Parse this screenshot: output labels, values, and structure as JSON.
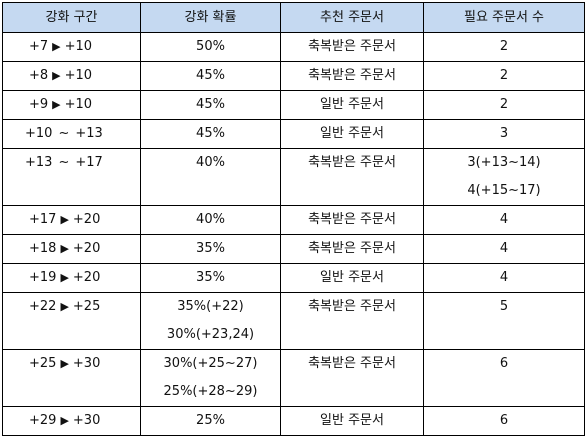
{
  "table": {
    "headers": [
      "강화 구간",
      "강화 확률",
      "추천 주문서",
      "필요 주문서 수"
    ],
    "rows": [
      {
        "from": "+7",
        "sep": "▶",
        "to": "+10",
        "rate": [
          "50%"
        ],
        "scroll": "축복받은 주문서",
        "count": [
          "2"
        ]
      },
      {
        "from": "+8",
        "sep": "▶",
        "to": "+10",
        "rate": [
          "45%"
        ],
        "scroll": "축복받은 주문서",
        "count": [
          "2"
        ]
      },
      {
        "from": "+9",
        "sep": "▶",
        "to": "+10",
        "rate": [
          "45%"
        ],
        "scroll": "일반 주문서",
        "count": [
          "2"
        ]
      },
      {
        "from": "+10",
        "sep": "~",
        "to": "+13",
        "rate": [
          "45%"
        ],
        "scroll": "일반 주문서",
        "count": [
          "3"
        ]
      },
      {
        "from": "+13",
        "sep": "~",
        "to": "+17",
        "rate": [
          "40%"
        ],
        "scroll": "축복받은 주문서",
        "count": [
          "3(+13~14)",
          "4(+15~17)"
        ]
      },
      {
        "from": "+17",
        "sep": "▶",
        "to": "+20",
        "rate": [
          "40%"
        ],
        "scroll": "축복받은 주문서",
        "count": [
          "4"
        ]
      },
      {
        "from": "+18",
        "sep": "▶",
        "to": "+20",
        "rate": [
          "35%"
        ],
        "scroll": "축복받은 주문서",
        "count": [
          "4"
        ]
      },
      {
        "from": "+19",
        "sep": "▶",
        "to": "+20",
        "rate": [
          "35%"
        ],
        "scroll": "일반 주문서",
        "count": [
          "4"
        ]
      },
      {
        "from": "+22",
        "sep": "▶",
        "to": "+25",
        "rate": [
          "35%(+22)",
          "30%(+23,24)"
        ],
        "scroll": "축복받은 주문서",
        "count": [
          "5"
        ]
      },
      {
        "from": "+25",
        "sep": "▶",
        "to": "+30",
        "rate": [
          "30%(+25~27)",
          "25%(+28~29)"
        ],
        "scroll": "축복받은 주문서",
        "count": [
          "6"
        ]
      },
      {
        "from": "+29",
        "sep": "▶",
        "to": "+30",
        "rate": [
          "25%"
        ],
        "scroll": "일반 주문서",
        "count": [
          "6"
        ]
      }
    ]
  }
}
